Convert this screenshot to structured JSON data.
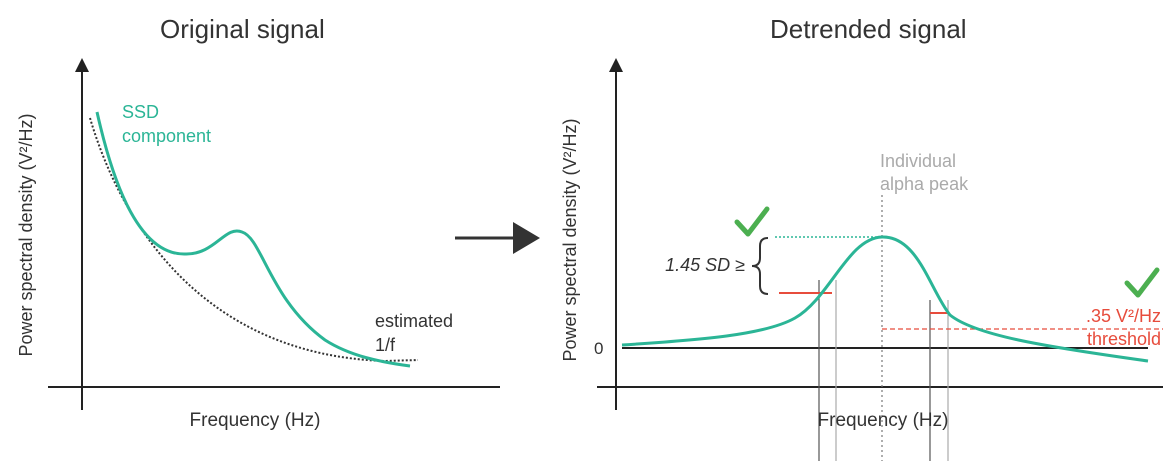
{
  "panels": {
    "left": {
      "title": "Original signal",
      "ylabel": "Power spectral density (V²/Hz)",
      "xlabel": "Frequency (Hz)",
      "curve_label_line1": "SSD",
      "curve_label_line2": "component",
      "fit_label_line1": "estimated",
      "fit_label_line2": "1/f"
    },
    "right": {
      "title": "Detrended signal",
      "ylabel": "Power spectral density (V²/Hz)",
      "xlabel": "Frequency (Hz)",
      "zero_label": "0",
      "peak_label_line1": "Individual",
      "peak_label_line2": "alpha peak",
      "sd_label": "1.45 SD ≥",
      "threshold_label_line1": ".35 V²/Hz",
      "threshold_label_line2": "threshold"
    }
  },
  "colors": {
    "curve": "#2bb596",
    "axis": "#222222",
    "threshold": "#e74c3c",
    "check": "#4caf50",
    "muted": "#aaaaaa"
  },
  "icons": {
    "arrow": "arrow-right-icon",
    "check": "checkmark-icon"
  }
}
